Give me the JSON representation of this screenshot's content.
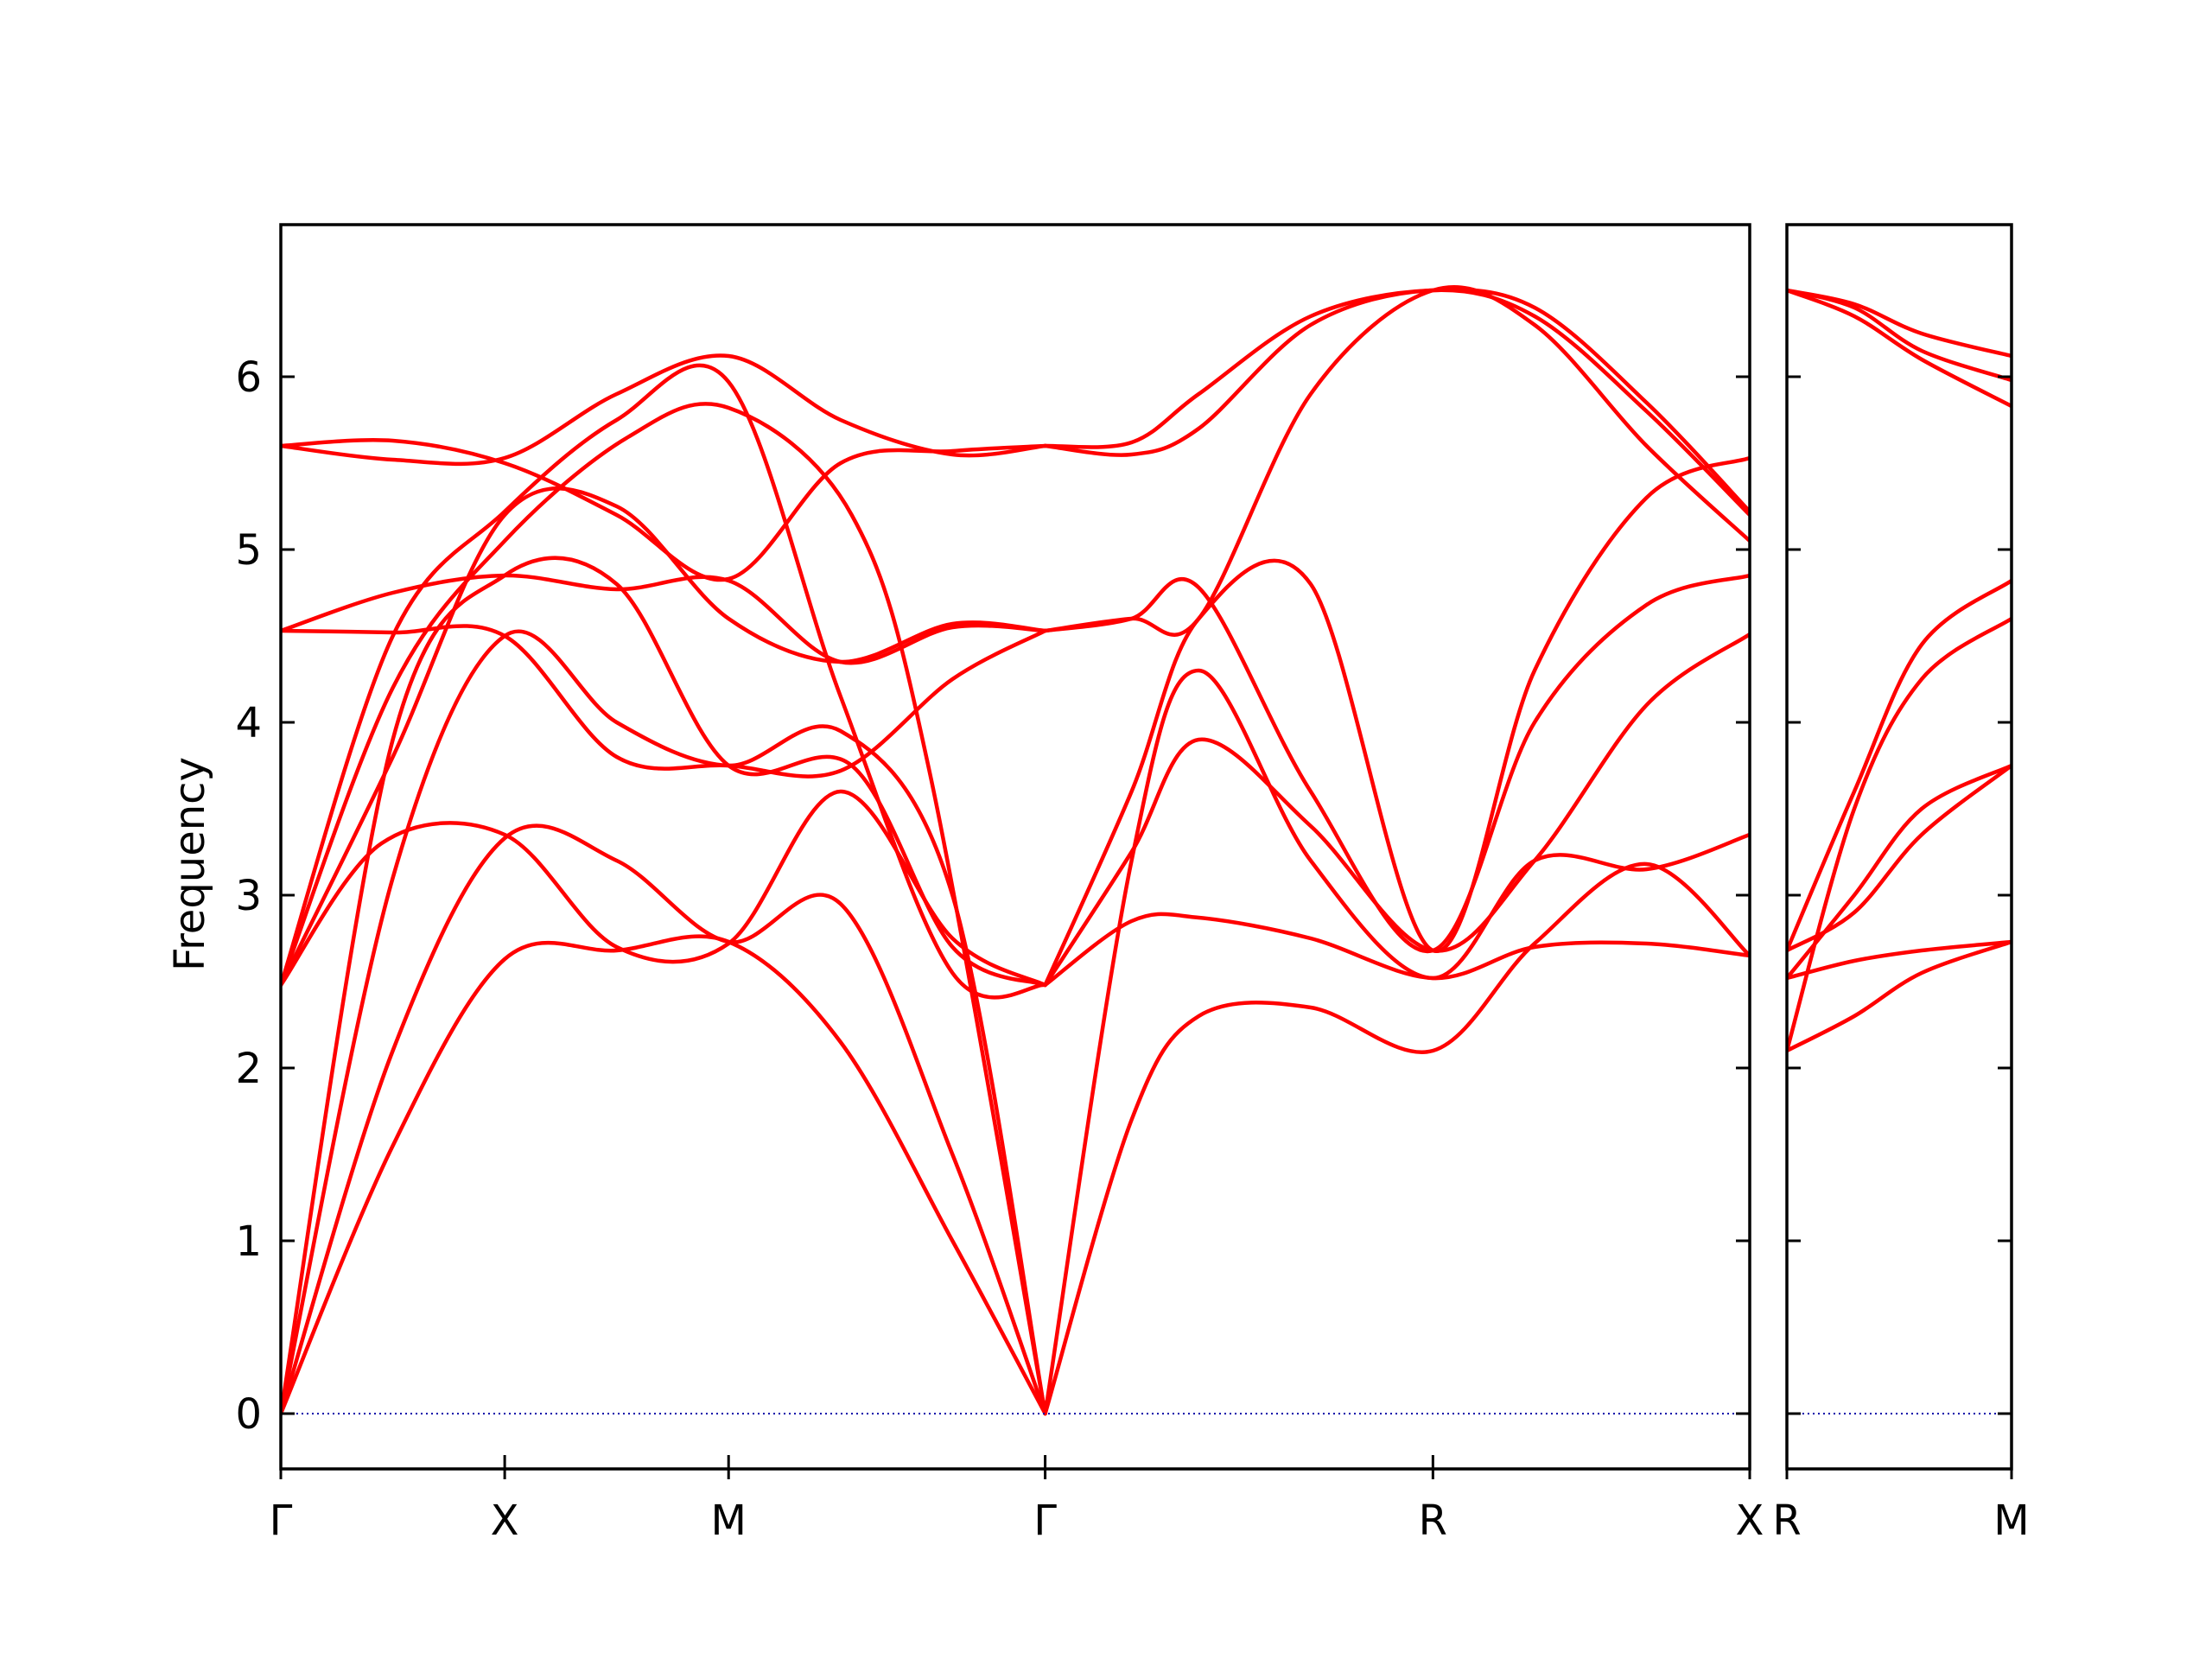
{
  "chart_data": {
    "type": "line",
    "ylabel": "Frequency",
    "ylim": [
      -0.32,
      6.88
    ],
    "y_ticks": [
      "0",
      "1",
      "2",
      "3",
      "4",
      "5",
      "6"
    ],
    "line_color": "#ff0000",
    "zero_line_color": "#0000aa",
    "panels": [
      {
        "path_labels": [
          "Γ",
          "X",
          "M",
          "Γ",
          "R",
          "X"
        ],
        "label_x": [
          0,
          1,
          2,
          3.414,
          5.146,
          6.561
        ],
        "xlim": [
          0,
          6.561
        ],
        "series": [
          {
            "x": [
              0,
              0.5,
              1,
              1.5,
              2,
              2.5,
              3.0,
              3.414
            ],
            "values": [
              0,
              1.55,
              2.63,
              2.68,
              2.73,
              2.15,
              1.0,
              0
            ]
          },
          {
            "x": [
              0,
              0.5,
              1,
              1.5,
              2,
              2.5,
              3.0,
              3.414
            ],
            "values": [
              0,
              2.1,
              3.33,
              3.2,
              2.73,
              2.95,
              1.5,
              0
            ]
          },
          {
            "x": [
              0,
              0.45,
              1,
              1.5,
              2,
              2.5,
              3.0,
              3.414
            ],
            "values": [
              2.48,
              3.3,
              3.35,
              2.7,
              2.72,
              3.6,
              2.75,
              2.48
            ]
          },
          {
            "x": [
              0,
              0.5,
              1,
              1.55,
              2,
              2.55,
              2.9,
              3.414
            ],
            "values": [
              2.48,
              4.2,
              5.05,
              5.65,
              5.82,
              5.2,
              3.7,
              0
            ]
          },
          {
            "x": [
              0,
              0.5,
              1,
              1.5,
              2,
              2.55,
              3.0,
              3.414
            ],
            "values": [
              0,
              3.9,
              4.85,
              4.8,
              3.75,
              3.75,
              2.7,
              2.48
            ]
          },
          {
            "x": [
              0,
              0.5,
              1,
              1.5,
              2,
              2.5,
              3.0,
              3.414
            ],
            "values": [
              2.48,
              4.5,
              5.22,
              5.75,
              5.97,
              4.15,
              2.55,
              2.48
            ]
          },
          {
            "x": [
              0,
              0.5,
              1,
              1.5,
              2,
              2.5,
              3.0,
              3.414
            ],
            "values": [
              4.53,
              4.52,
              4.5,
              3.8,
              3.75,
              3.72,
              4.25,
              4.53
            ]
          },
          {
            "x": [
              0,
              0.5,
              1,
              1.5,
              2,
              2.5,
              3.0,
              3.414
            ],
            "values": [
              4.53,
              4.75,
              4.85,
              4.77,
              4.82,
              4.35,
              4.55,
              4.53
            ]
          },
          {
            "x": [
              0,
              0.5,
              1,
              1.5,
              2,
              2.5,
              3.0,
              3.414
            ],
            "values": [
              5.6,
              5.63,
              5.5,
              5.2,
              4.83,
              5.5,
              5.57,
              5.6
            ]
          },
          {
            "x": [
              0,
              0.5,
              1,
              1.5,
              2,
              2.5,
              3.0,
              3.414
            ],
            "values": [
              5.6,
              5.52,
              5.53,
              5.9,
              6.12,
              5.75,
              5.55,
              5.6
            ]
          },
          {
            "x": [
              0,
              0.5,
              1,
              1.5,
              2,
              2.5,
              3.0,
              3.414
            ],
            "values": [
              2.48,
              3.8,
              5.2,
              5.25,
              4.6,
              4.35,
              4.57,
              4.53
            ]
          },
          {
            "x": [
              0,
              0.5,
              1,
              1.5,
              2,
              2.5,
              3.0,
              3.414
            ],
            "values": [
              0,
              3.1,
              4.5,
              4.0,
              3.75,
              3.95,
              3.0,
              0
            ]
          },
          {
            "x": [
              3.414,
              3.8,
              4.1,
              4.6,
              5.146,
              5.6,
              6.1,
              6.561
            ],
            "values": [
              0,
              1.7,
              2.3,
              2.35,
              2.1,
              2.72,
              3.18,
              2.65
            ]
          },
          {
            "x": [
              3.414,
              3.8,
              4.1,
              4.6,
              5.146,
              5.6,
              6.1,
              6.561
            ],
            "values": [
              2.48,
              2.85,
              2.87,
              2.75,
              2.52,
              2.7,
              2.72,
              2.65
            ]
          },
          {
            "x": [
              3.414,
              3.8,
              4.1,
              4.6,
              5.146,
              5.6,
              6.1,
              6.561
            ],
            "values": [
              0,
              3.2,
              4.3,
              3.2,
              2.52,
              3.2,
              3.15,
              3.35
            ]
          },
          {
            "x": [
              3.414,
              3.8,
              4.1,
              4.6,
              5.146,
              5.6,
              6.1,
              6.561
            ],
            "values": [
              2.48,
              3.25,
              3.9,
              3.4,
              2.68,
              3.2,
              4.1,
              4.51
            ]
          },
          {
            "x": [
              3.414,
              3.8,
              4.1,
              4.6,
              5.146,
              5.6,
              6.1,
              6.561
            ],
            "values": [
              4.53,
              4.6,
              4.78,
              3.6,
              2.68,
              4.0,
              4.68,
              4.85
            ]
          },
          {
            "x": [
              3.414,
              3.8,
              4.1,
              4.6,
              5.146,
              5.6,
              6.1,
              6.561
            ],
            "values": [
              5.6,
              5.55,
              5.7,
              6.3,
              6.5,
              6.35,
              5.8,
              5.2
            ]
          },
          {
            "x": [
              3.414,
              3.8,
              4.1,
              4.6,
              5.146,
              5.6,
              6.1,
              6.561
            ],
            "values": [
              5.6,
              5.62,
              5.9,
              6.35,
              6.5,
              6.4,
              5.85,
              5.22
            ]
          },
          {
            "x": [
              3.414,
              3.8,
              4.1,
              4.6,
              5.146,
              5.6,
              6.1,
              6.561
            ],
            "values": [
              4.53,
              4.6,
              4.6,
              5.9,
              6.5,
              6.3,
              5.6,
              5.05
            ]
          },
          {
            "x": [
              3.414,
              3.8,
              4.1,
              4.6,
              5.146,
              5.6,
              6.1,
              6.561
            ],
            "values": [
              2.48,
              3.6,
              4.6,
              4.8,
              2.68,
              4.3,
              5.3,
              5.53
            ]
          }
        ]
      },
      {
        "path_labels": [
          "R",
          "M"
        ],
        "label_x": [
          0,
          1
        ],
        "xlim": [
          0,
          1
        ],
        "series": [
          {
            "x": [
              0,
              0.3,
              0.6,
              1
            ],
            "values": [
              2.1,
              2.3,
              2.55,
              2.73
            ]
          },
          {
            "x": [
              0,
              0.3,
              0.6,
              1
            ],
            "values": [
              2.52,
              2.62,
              2.68,
              2.73
            ]
          },
          {
            "x": [
              0,
              0.3,
              0.6,
              1
            ],
            "values": [
              2.68,
              2.9,
              3.35,
              3.75
            ]
          },
          {
            "x": [
              0,
              0.3,
              0.6,
              1
            ],
            "values": [
              2.52,
              3.0,
              3.5,
              3.75
            ]
          },
          {
            "x": [
              0,
              0.3,
              0.6,
              1
            ],
            "values": [
              2.1,
              3.5,
              4.25,
              4.6
            ]
          },
          {
            "x": [
              0,
              0.3,
              0.6,
              1
            ],
            "values": [
              2.68,
              3.6,
              4.45,
              4.82
            ]
          },
          {
            "x": [
              0,
              0.3,
              0.6,
              1
            ],
            "values": [
              6.5,
              6.35,
              6.1,
              5.83
            ]
          },
          {
            "x": [
              0,
              0.3,
              0.6,
              1
            ],
            "values": [
              6.5,
              6.4,
              6.15,
              5.98
            ]
          },
          {
            "x": [
              0,
              0.3,
              0.6,
              1
            ],
            "values": [
              6.5,
              6.42,
              6.25,
              6.12
            ]
          }
        ]
      }
    ]
  }
}
